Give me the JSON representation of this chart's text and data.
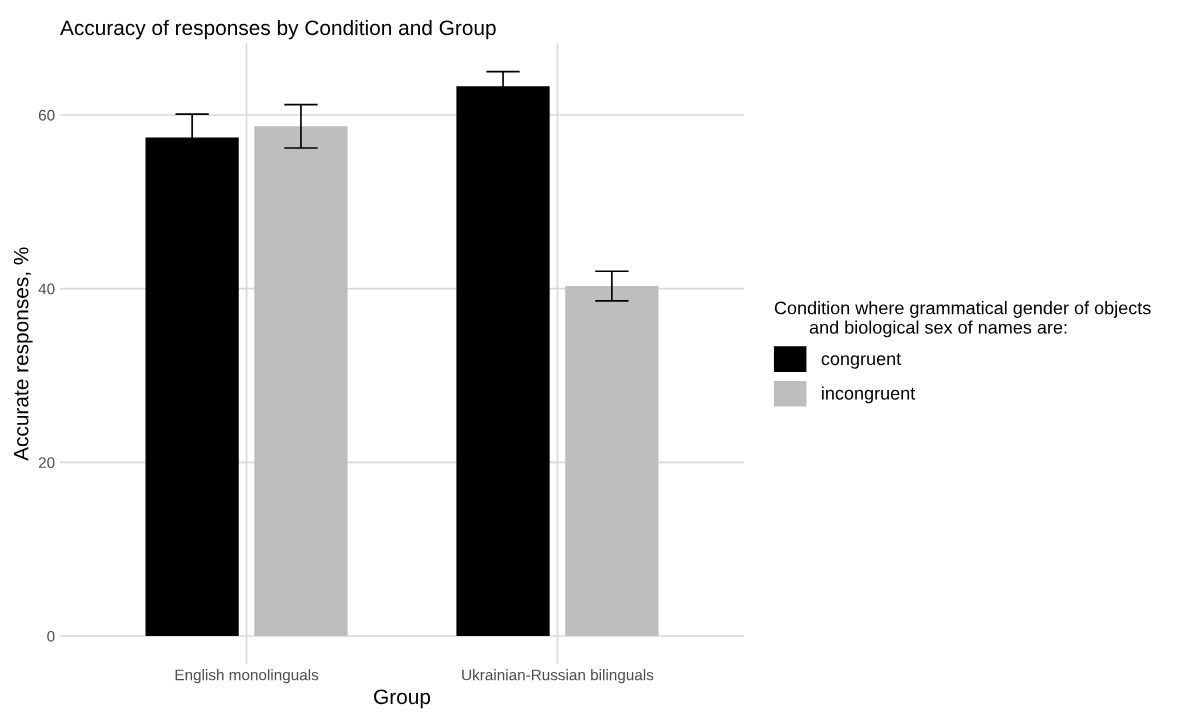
{
  "chart_data": {
    "type": "bar",
    "title": "Accuracy of responses by Condition and Group",
    "xlabel": "Group",
    "ylabel": "Accurate responses, %",
    "legend_title": "Condition where grammatical gender of objects\n       and biological sex of names are:",
    "categories": [
      "English monolinguals",
      "Ukrainian-Russian bilinguals"
    ],
    "series": [
      {
        "name": "congruent",
        "color": "#000000",
        "values": [
          57.4,
          63.3
        ],
        "errors": [
          2.7,
          1.7
        ]
      },
      {
        "name": "incongruent",
        "color": "#bebebe",
        "values": [
          58.7,
          40.3
        ],
        "errors": [
          2.5,
          1.7
        ]
      }
    ],
    "ylim": [
      -3.25,
      68.25
    ],
    "yticks": [
      0,
      20,
      40,
      60
    ],
    "grid": true,
    "legend": "right"
  }
}
